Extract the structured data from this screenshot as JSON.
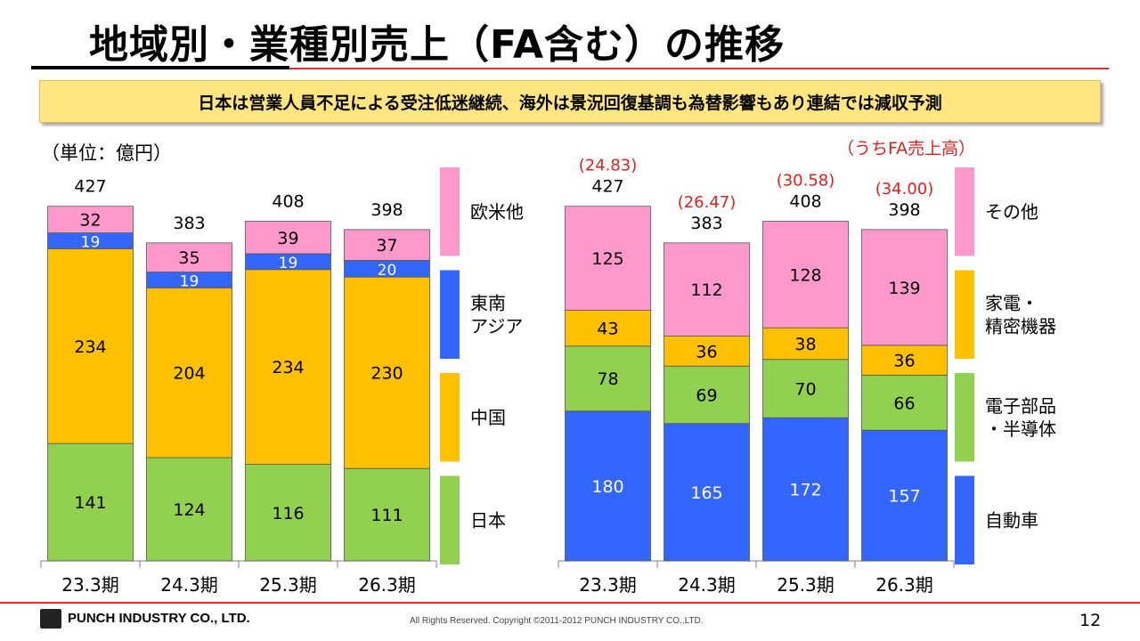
{
  "title": "地域別・業種別売上（FA含む）の推移",
  "banner": "日本は営業人員不足による受注低迷継続、海外は景況回復基調も為替影響もあり連結では減収予測",
  "unit_label": "（単位：億円）",
  "fa_sales_label": "（うちFA売上高）",
  "colors": {
    "pink": "#ff99cc",
    "blue": "#3366ff",
    "orange": "#ffc000",
    "green": "#92d050",
    "accent_red": "#d9342b",
    "banner": "#ffe680"
  },
  "chart_data": [
    {
      "type": "bar",
      "stacked": true,
      "categories": [
        "23.3期",
        "24.3期",
        "25.3期",
        "26.3期"
      ],
      "series": [
        {
          "name": "日本",
          "color": "#92d050",
          "values": [
            141,
            124,
            116,
            111
          ]
        },
        {
          "name": "中国",
          "color": "#ffc000",
          "values": [
            234,
            204,
            234,
            230
          ]
        },
        {
          "name": "東南\nアジア",
          "color": "#3366ff",
          "values": [
            19,
            19,
            19,
            20
          ]
        },
        {
          "name": "欧米他",
          "color": "#ff99cc",
          "values": [
            32,
            35,
            39,
            37
          ]
        }
      ],
      "totals": [
        427,
        383,
        408,
        398
      ],
      "ylim": [
        0,
        450
      ],
      "legend": "right"
    },
    {
      "type": "bar",
      "stacked": true,
      "categories": [
        "23.3期",
        "24.3期",
        "25.3期",
        "26.3期"
      ],
      "series": [
        {
          "name": "自動車",
          "color": "#3366ff",
          "values": [
            180,
            165,
            172,
            157
          ]
        },
        {
          "name": "電子部品\n・半導体",
          "color": "#92d050",
          "values": [
            78,
            69,
            70,
            66
          ]
        },
        {
          "name": "家電・\n精密機器",
          "color": "#ffc000",
          "values": [
            43,
            36,
            38,
            36
          ]
        },
        {
          "name": "その他",
          "color": "#ff99cc",
          "values": [
            125,
            112,
            128,
            139
          ]
        }
      ],
      "totals": [
        427,
        383,
        408,
        398
      ],
      "fa_sales": [
        "(24.83)",
        "(26.47)",
        "(30.58)",
        "(34.00)"
      ],
      "ylim": [
        0,
        450
      ],
      "legend": "right"
    }
  ],
  "footer": {
    "company": "PUNCH INDUSTRY CO., LTD.",
    "copyright": "All Rights Reserved. Copyright ©2011-2012  PUNCH  INDUSTRY  CO.,LTD.",
    "page": "12"
  }
}
